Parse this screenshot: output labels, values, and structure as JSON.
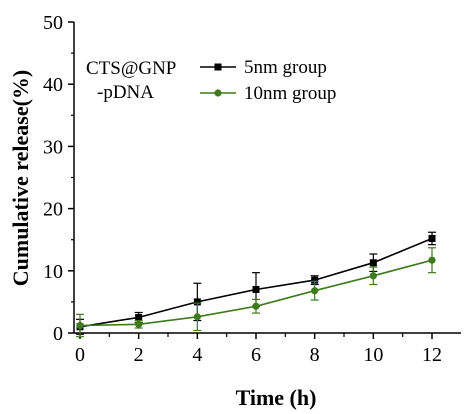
{
  "chart_data": {
    "type": "line",
    "title": "",
    "xlabel": "Time (h)",
    "ylabel": "Cumulative release(%)",
    "xlim": [
      0,
      12
    ],
    "ylim": [
      0,
      50
    ],
    "x_ticks": [
      "0",
      "2",
      "4",
      "6",
      "8",
      "10",
      "12"
    ],
    "y_ticks": [
      "0",
      "10",
      "20",
      "30",
      "40",
      "50"
    ],
    "grid": false,
    "legend_position": "top-right",
    "annotation": [
      "CTS@GNP",
      "-pDNA"
    ],
    "x": [
      0,
      2,
      4,
      6,
      8,
      10,
      12
    ],
    "series": [
      {
        "name": "5nm group",
        "color": "#000000",
        "marker": "square",
        "values": [
          1.0,
          2.5,
          5.0,
          7.0,
          8.5,
          11.3,
          15.2
        ],
        "errors": [
          1.2,
          0.8,
          3.0,
          2.7,
          0.7,
          1.4,
          1.0
        ]
      },
      {
        "name": "10nm group",
        "color": "#3f7a1c",
        "marker": "circle",
        "values": [
          1.2,
          1.4,
          2.6,
          4.3,
          6.8,
          9.2,
          11.7
        ],
        "errors": [
          1.8,
          0.6,
          2.2,
          1.1,
          1.5,
          1.4,
          2.0
        ]
      }
    ]
  }
}
